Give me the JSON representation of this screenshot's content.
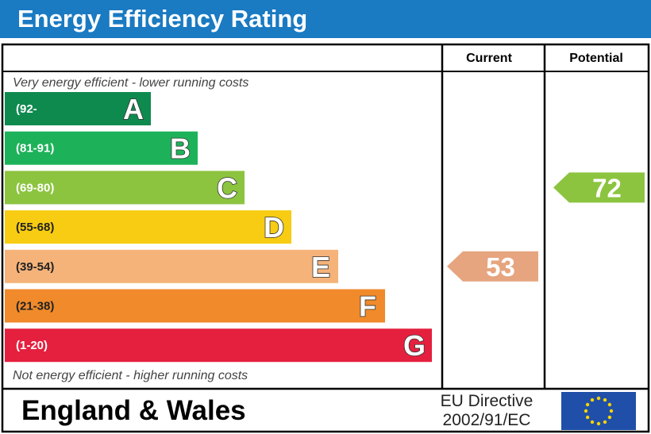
{
  "title": "Energy Efficiency Rating",
  "columns": {
    "current": "Current",
    "potential": "Potential"
  },
  "top_caption": "Very energy efficient - lower running costs",
  "bottom_caption": "Not energy efficient - higher running costs",
  "footer": {
    "region": "England & Wales",
    "directive_line1": "EU Directive",
    "directive_line2": "2002/91/EC",
    "flag_icon": "eu-flag-icon"
  },
  "chart_data": {
    "type": "bar",
    "categories": [
      "A",
      "B",
      "C",
      "D",
      "E",
      "F",
      "G"
    ],
    "ranges": [
      "(92-",
      "(81-91)",
      "(69-80)",
      "(55-68)",
      "(39-54)",
      "(21-38)",
      "(1-20)"
    ],
    "colors": [
      "#0f8a4f",
      "#1db25a",
      "#8cc43f",
      "#f7cc12",
      "#f5b37a",
      "#f08a2a",
      "#e5203f"
    ],
    "current": {
      "value": 53,
      "band": "E",
      "color": "#e6a57f"
    },
    "potential": {
      "value": 72,
      "band": "C",
      "color": "#8cc43f"
    }
  }
}
